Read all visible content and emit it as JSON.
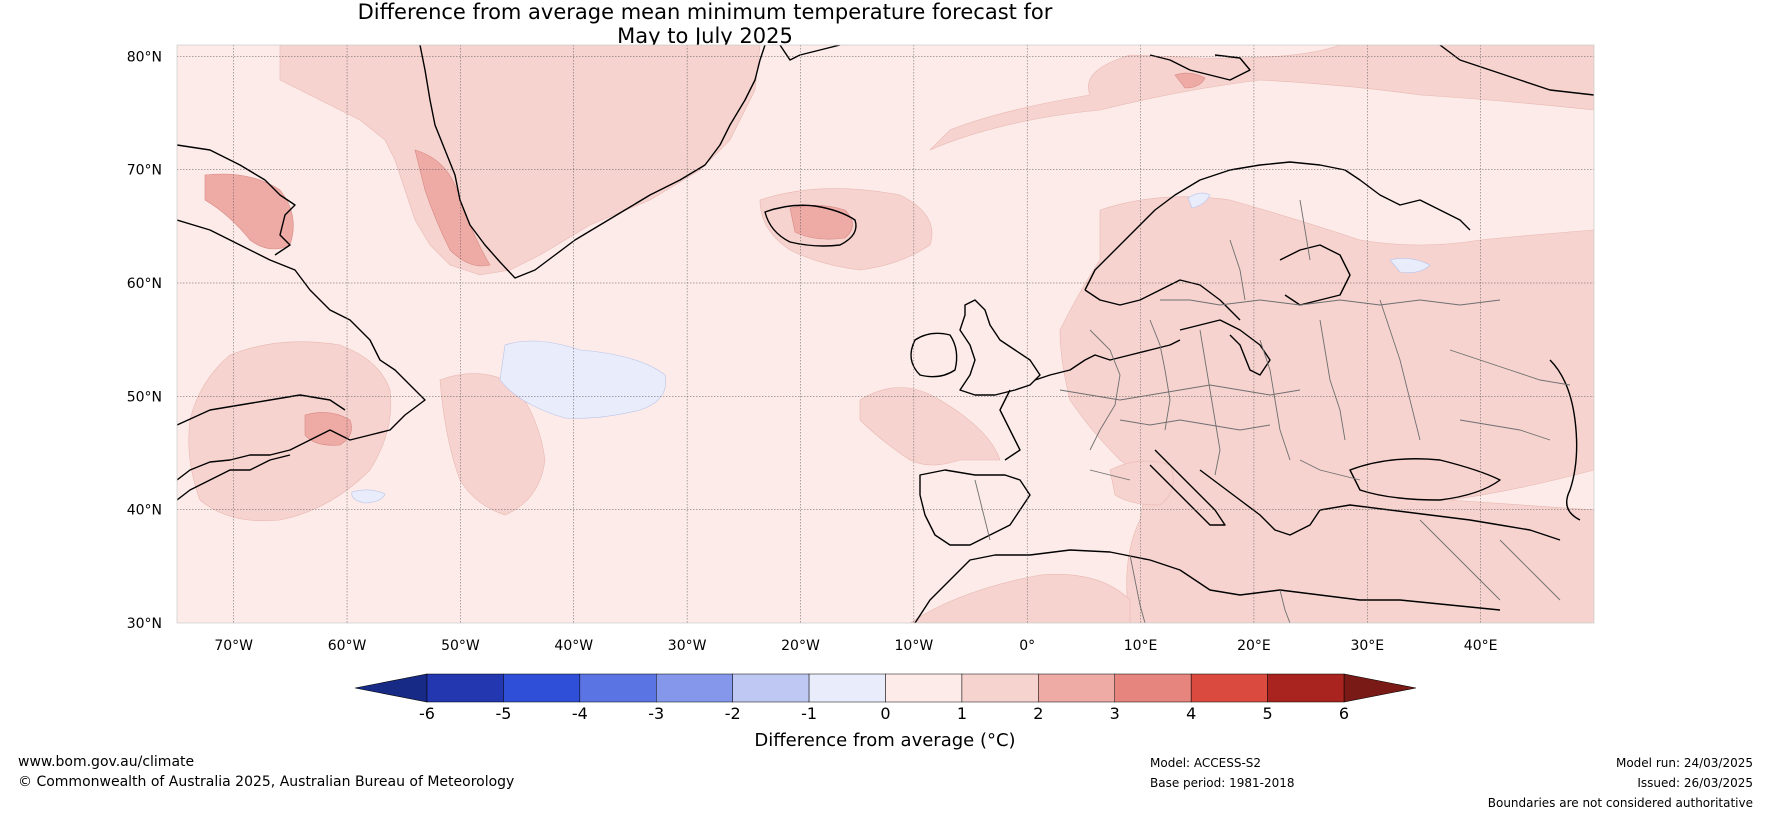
{
  "title_line1": "Difference from average mean minimum temperature forecast for",
  "title_line2": "May to July 2025",
  "lat_ticks": [
    {
      "label": "80°N",
      "value": 80
    },
    {
      "label": "70°N",
      "value": 70
    },
    {
      "label": "60°N",
      "value": 60
    },
    {
      "label": "50°N",
      "value": 50
    },
    {
      "label": "40°N",
      "value": 40
    },
    {
      "label": "30°N",
      "value": 30
    }
  ],
  "lon_ticks": [
    {
      "label": "70°W",
      "value": -70
    },
    {
      "label": "60°W",
      "value": -60
    },
    {
      "label": "50°W",
      "value": -50
    },
    {
      "label": "40°W",
      "value": -40
    },
    {
      "label": "30°W",
      "value": -30
    },
    {
      "label": "20°W",
      "value": -20
    },
    {
      "label": "10°W",
      "value": -10
    },
    {
      "label": "0°",
      "value": 0
    },
    {
      "label": "10°E",
      "value": 10
    },
    {
      "label": "20°E",
      "value": 20
    },
    {
      "label": "30°E",
      "value": 30
    },
    {
      "label": "40°E",
      "value": 40
    }
  ],
  "colorbar": {
    "label": "Difference from average (°C)",
    "ticks": [
      "-6",
      "-5",
      "-4",
      "-3",
      "-2",
      "-1",
      "0",
      "1",
      "2",
      "3",
      "4",
      "5",
      "6"
    ],
    "colors": [
      "#2237b0",
      "#2f4fd8",
      "#5b74e3",
      "#8497ea",
      "#bfc8f3",
      "#e8ecfb",
      "#fcebe8",
      "#f6d3cf",
      "#eeaaa5",
      "#e6847e",
      "#db4a3f",
      "#a9241e"
    ],
    "under_color": "#162a86",
    "over_color": "#7a1a17"
  },
  "footer": {
    "website": "www.bom.gov.au/climate",
    "copyright": "© Commonwealth of Australia 2025, Australian Bureau of Meteorology",
    "model": "Model: ACCESS-S2",
    "base_period": "Base period: 1981-2018",
    "model_run": "Model run: 24/03/2025",
    "issued": "Issued: 26/03/2025",
    "disclaimer": "Boundaries are not considered authoritative"
  }
}
